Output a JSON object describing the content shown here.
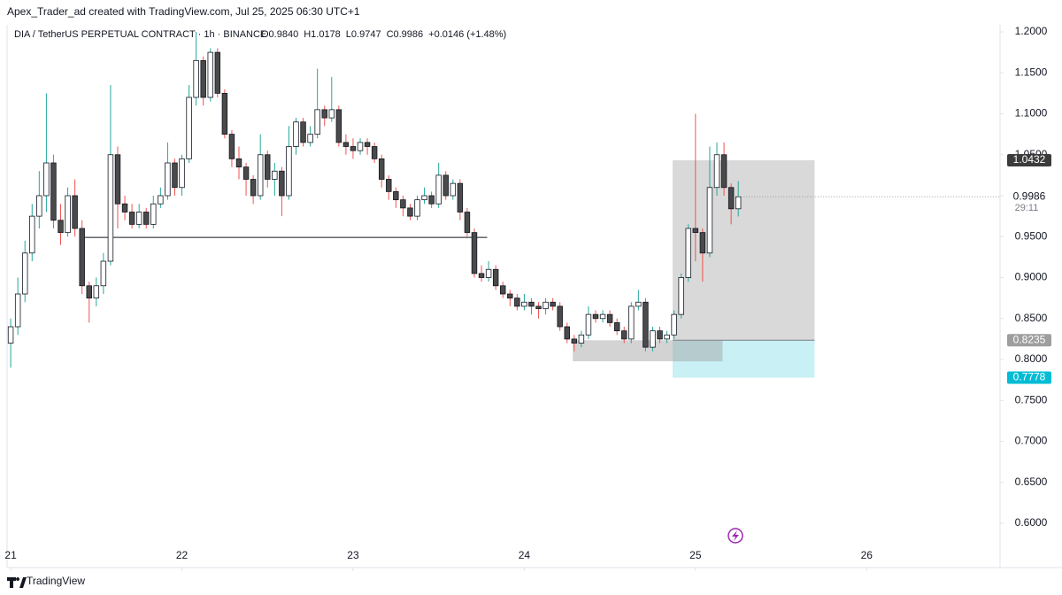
{
  "credit": "Apex_Trader_ad created with TradingView.com, Jul 25, 2025 06:30 UTC+1",
  "brand": "TradingView",
  "chart_data": {
    "type": "candlestick",
    "title": "DIA / TetherUS PERPETUAL CONTRACT · 1h · BINANCE",
    "ohlc_labels": [
      "O0.9840",
      "H1.0178",
      "L0.9747",
      "C0.9986"
    ],
    "change": "+0.0146 (+1.48%)",
    "up_color": "#ffffff",
    "down_color": "#4a4a4a",
    "up_wick": "#26a69a",
    "down_wick": "#ef5350",
    "x": [
      0,
      1,
      2,
      3,
      4,
      5,
      6,
      7,
      8,
      9,
      10,
      11,
      12,
      13,
      14,
      15,
      16,
      17,
      18,
      19,
      20,
      21,
      22,
      23,
      24,
      25,
      26,
      27,
      28,
      29,
      30,
      31,
      32,
      33,
      34,
      35,
      36,
      37,
      38,
      39,
      40,
      41,
      42,
      43,
      44,
      45,
      46,
      47,
      48,
      49,
      50,
      51,
      52,
      53,
      54,
      55,
      56,
      57,
      58,
      59,
      60,
      61,
      62,
      63,
      64,
      65,
      66,
      67,
      68,
      69,
      70,
      71,
      72,
      73,
      74,
      75,
      76,
      77,
      78,
      79,
      80,
      81,
      82,
      83,
      84,
      85,
      86,
      87,
      88,
      89,
      90,
      91,
      92,
      93,
      94,
      95,
      96,
      97,
      98,
      99,
      100,
      101,
      102
    ],
    "open": [
      0.82,
      0.84,
      0.88,
      0.93,
      0.975,
      1.0,
      1.04,
      0.97,
      0.955,
      1.0,
      0.96,
      0.89,
      0.875,
      0.89,
      0.92,
      1.05,
      0.99,
      0.98,
      0.965,
      0.98,
      0.965,
      0.99,
      1.0,
      1.04,
      1.01,
      1.045,
      1.12,
      1.165,
      1.12,
      1.175,
      1.125,
      1.075,
      1.045,
      1.035,
      1.02,
      1.0,
      1.05,
      1.02,
      1.03,
      1.0,
      1.06,
      1.09,
      1.065,
      1.075,
      1.105,
      1.095,
      1.105,
      1.065,
      1.06,
      1.055,
      1.065,
      1.06,
      1.045,
      1.02,
      1.005,
      0.995,
      0.985,
      0.975,
      0.995,
      1.0,
      0.99,
      1.025,
      1.0,
      1.015,
      0.98,
      0.955,
      0.905,
      0.9,
      0.91,
      0.89,
      0.88,
      0.875,
      0.865,
      0.87,
      0.865,
      0.862,
      0.87,
      0.865,
      0.84,
      0.825,
      0.82,
      0.83,
      0.855,
      0.85,
      0.855,
      0.845,
      0.835,
      0.825,
      0.865,
      0.87,
      0.815,
      0.835,
      0.825,
      0.83,
      0.855,
      0.9,
      0.96,
      0.955,
      0.93,
      1.01,
      1.05,
      1.01,
      0.984
    ],
    "high": [
      0.85,
      0.9,
      0.945,
      0.99,
      1.03,
      1.125,
      1.05,
      0.99,
      1.01,
      1.02,
      0.97,
      0.895,
      0.9,
      0.93,
      1.135,
      1.06,
      1.0,
      0.99,
      0.99,
      0.985,
      1.0,
      1.01,
      1.065,
      1.045,
      1.05,
      1.135,
      1.2,
      1.17,
      1.18,
      1.18,
      1.13,
      1.08,
      1.06,
      1.04,
      1.025,
      1.075,
      1.055,
      1.04,
      1.035,
      1.085,
      1.095,
      1.095,
      1.085,
      1.155,
      1.11,
      1.145,
      1.11,
      1.075,
      1.07,
      1.07,
      1.07,
      1.065,
      1.05,
      1.025,
      1.01,
      1.0,
      0.99,
      1.0,
      1.01,
      1.005,
      1.04,
      1.03,
      1.02,
      1.02,
      0.985,
      0.96,
      0.915,
      0.92,
      0.915,
      0.895,
      0.885,
      0.88,
      0.88,
      0.875,
      0.87,
      0.875,
      0.875,
      0.87,
      0.845,
      0.83,
      0.835,
      0.865,
      0.86,
      0.86,
      0.86,
      0.85,
      0.84,
      0.87,
      0.885,
      0.875,
      0.84,
      0.84,
      0.835,
      0.86,
      0.905,
      0.965,
      1.1,
      0.96,
      1.06,
      1.065,
      1.065,
      1.015,
      1.0178
    ],
    "low": [
      0.79,
      0.83,
      0.87,
      0.92,
      0.96,
      0.98,
      0.96,
      0.94,
      0.95,
      0.95,
      0.88,
      0.845,
      0.865,
      0.88,
      0.915,
      0.96,
      0.97,
      0.96,
      0.96,
      0.96,
      0.96,
      0.985,
      0.995,
      1.0,
      1.0,
      1.04,
      1.11,
      1.11,
      1.115,
      1.12,
      1.07,
      1.035,
      1.02,
      1.0,
      0.99,
      0.995,
      1.01,
      1.0,
      0.975,
      0.995,
      1.05,
      1.06,
      1.06,
      1.07,
      1.085,
      1.09,
      1.06,
      1.05,
      1.045,
      1.05,
      1.05,
      1.04,
      1.01,
      0.995,
      0.985,
      0.975,
      0.97,
      0.97,
      0.99,
      0.985,
      0.985,
      0.995,
      0.995,
      0.97,
      0.95,
      0.9,
      0.895,
      0.895,
      0.885,
      0.875,
      0.865,
      0.86,
      0.86,
      0.855,
      0.85,
      0.855,
      0.86,
      0.835,
      0.82,
      0.81,
      0.815,
      0.825,
      0.845,
      0.845,
      0.84,
      0.83,
      0.82,
      0.82,
      0.86,
      0.81,
      0.81,
      0.82,
      0.82,
      0.825,
      0.85,
      0.895,
      0.92,
      0.895,
      0.925,
      1.0,
      1.0,
      0.965,
      0.9747
    ],
    "close": [
      0.84,
      0.88,
      0.93,
      0.975,
      1.0,
      1.04,
      0.97,
      0.955,
      1.0,
      0.96,
      0.89,
      0.875,
      0.89,
      0.92,
      1.05,
      0.99,
      0.98,
      0.965,
      0.98,
      0.965,
      0.99,
      1.0,
      1.04,
      1.01,
      1.045,
      1.12,
      1.165,
      1.12,
      1.175,
      1.125,
      1.075,
      1.045,
      1.035,
      1.02,
      1.0,
      1.05,
      1.02,
      1.03,
      1.0,
      1.06,
      1.09,
      1.065,
      1.075,
      1.105,
      1.095,
      1.105,
      1.065,
      1.06,
      1.055,
      1.065,
      1.06,
      1.045,
      1.02,
      1.005,
      0.995,
      0.985,
      0.975,
      0.995,
      1.0,
      0.99,
      1.025,
      1.0,
      1.015,
      0.98,
      0.955,
      0.905,
      0.9,
      0.91,
      0.89,
      0.88,
      0.875,
      0.865,
      0.87,
      0.865,
      0.862,
      0.87,
      0.865,
      0.84,
      0.825,
      0.82,
      0.83,
      0.855,
      0.85,
      0.855,
      0.845,
      0.835,
      0.825,
      0.865,
      0.87,
      0.815,
      0.835,
      0.825,
      0.83,
      0.855,
      0.9,
      0.96,
      0.955,
      0.93,
      1.01,
      1.05,
      1.01,
      0.984,
      0.9986
    ],
    "xlim": [
      -1.5,
      138.7
    ],
    "xticks": [
      {
        "value": 0,
        "label": "21"
      },
      {
        "value": 24,
        "label": "22"
      },
      {
        "value": 48,
        "label": "23"
      },
      {
        "value": 72,
        "label": "24"
      },
      {
        "value": 96,
        "label": "25"
      },
      {
        "value": 120,
        "label": "26"
      }
    ],
    "ylim": [
      0.546,
      1.2389
    ],
    "yticks": [
      {
        "value": 0.6,
        "label": "0.6000"
      },
      {
        "value": 0.65,
        "label": "0.6500"
      },
      {
        "value": 0.7,
        "label": "0.7000"
      },
      {
        "value": 0.75,
        "label": "0.7500"
      },
      {
        "value": 0.8,
        "label": "0.8000"
      },
      {
        "value": 0.85,
        "label": "0.8500"
      },
      {
        "value": 0.9,
        "label": "0.9000"
      },
      {
        "value": 0.95,
        "label": "0.9500"
      },
      {
        "value": 1.0,
        "label": "1.0000"
      },
      {
        "value": 1.05,
        "label": "1.0500"
      },
      {
        "value": 1.1,
        "label": "1.1000"
      },
      {
        "value": 1.15,
        "label": "1.1500"
      },
      {
        "value": 1.2,
        "label": "1.2000"
      }
    ],
    "hline": {
      "value": 0.949,
      "x": [
        10.4,
        66.8
      ]
    },
    "zone": {
      "top": 0.8235,
      "bottom": 0.7978,
      "x": [
        78.8,
        99.8
      ]
    },
    "position": {
      "target": 1.0432,
      "entry": 0.8235,
      "stop": 0.7778,
      "x": [
        92.8,
        112.7
      ]
    },
    "price_labels": [
      {
        "value": 1.0432,
        "label": "1.0432",
        "color": "#3b3b3b"
      },
      {
        "value": 0.9986,
        "label": "0.9986",
        "color": "#ffffff"
      },
      {
        "value": 0.8235,
        "label": "0.8235",
        "color": "#9e9e9e"
      },
      {
        "value": 0.7778,
        "label": "0.7778",
        "color": "#00bcd4"
      }
    ],
    "countdown": "29:11"
  }
}
